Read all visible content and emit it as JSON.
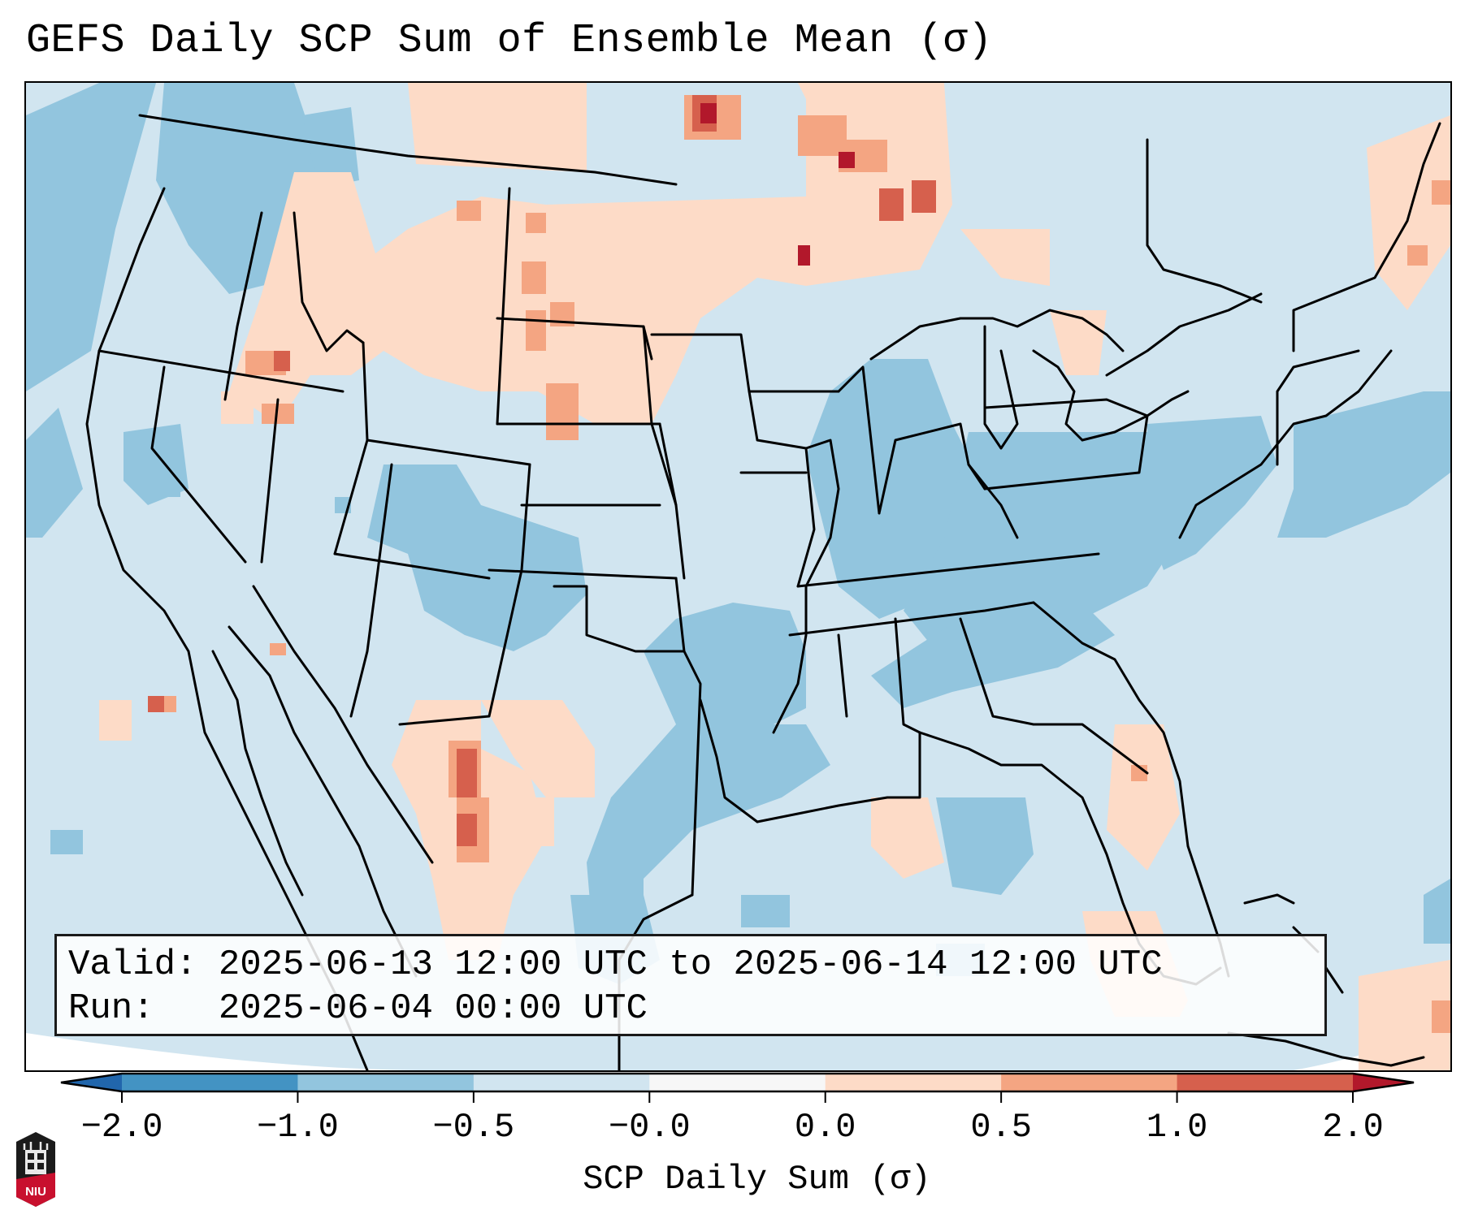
{
  "title": "GEFS Daily SCP Sum of Ensemble Mean (σ)",
  "info_box": {
    "valid_label": "Valid:",
    "valid_value": "2025-06-13 12:00 UTC to 2025-06-14 12:00 UTC",
    "run_label": "Run:",
    "run_value": "2025-06-04 00:00 UTC"
  },
  "logo": {
    "text": "NIU",
    "colors": {
      "shield": "#1b1b1b",
      "band": "#c8102e"
    }
  },
  "chart_data": {
    "type": "heatmap",
    "title": "GEFS Daily SCP Sum of Ensemble Mean (σ)",
    "projection": "Lambert conformal, CONUS + southern Canada + northern Mexico",
    "colorbar": {
      "label": "SCP Daily Sum (σ)",
      "orientation": "horizontal",
      "extend": "both",
      "tick_labels": [
        "−2.0",
        "−1.0",
        "−0.5",
        "−0.0",
        "0.0",
        "0.5",
        "1.0",
        "2.0"
      ],
      "boundaries": [
        -2.0,
        -1.0,
        -0.5,
        -0.0,
        0.0,
        0.5,
        1.0,
        2.0
      ],
      "colors": [
        "#4393c3",
        "#92c5de",
        "#d1e5f0",
        "#f7f7f7",
        "#fddbc7",
        "#f4a582",
        "#d6604d"
      ],
      "under_color": "#2166ac",
      "over_color": "#b2182b"
    },
    "background_level": "-0.5 to -0.0",
    "regions": [
      {
        "name": "Pacific Northwest / Washington",
        "level": "-1.0 to -0.5"
      },
      {
        "name": "Northeast Pacific offshore",
        "level": "-1.0 to -0.5"
      },
      {
        "name": "Idaho / Montana / Wyoming",
        "level": "0.0 to 0.5"
      },
      {
        "name": "Southern Alberta / Saskatchewan / Manitoba",
        "level": "0.0 to 0.5"
      },
      {
        "name": "Southern Saskatchewan max",
        "level": "> 2.0"
      },
      {
        "name": "Southern Manitoba max",
        "level": "> 2.0"
      },
      {
        "name": "Eastern Montana spots",
        "level": "0.5 to 1.0"
      },
      {
        "name": "Northeast Oregon / Idaho spot",
        "level": "1.0 to 2.0"
      },
      {
        "name": "Colorado / Utah",
        "level": "-1.0 to -0.5"
      },
      {
        "name": "Oklahoma / North Texas",
        "level": "-1.0 to -0.5"
      },
      {
        "name": "Iowa / Illinois / Indiana / Ohio / Pennsylvania",
        "level": "-1.0 to -0.5"
      },
      {
        "name": "Kentucky / Tennessee / West Virginia",
        "level": "-1.0 to -0.5"
      },
      {
        "name": "Western Atlantic off Mid-Atlantic",
        "level": "-1.0 to -0.5"
      },
      {
        "name": "Chihuahua, Mexico",
        "level": "0.5 to 2.0"
      },
      {
        "name": "New Mexico",
        "level": "0.0 to 0.5"
      },
      {
        "name": "Southwest Florida / Gulf",
        "level": "0.0 to 0.5"
      },
      {
        "name": "Georgia / South Carolina coast",
        "level": "0.0 to 1.0"
      },
      {
        "name": "Michigan / Ontario",
        "level": "0.0 to 0.5"
      },
      {
        "name": "Maritime Canada",
        "level": "0.0 to 1.0"
      },
      {
        "name": "Offshore Baja California",
        "level": "0.0 to 2.0"
      }
    ]
  }
}
